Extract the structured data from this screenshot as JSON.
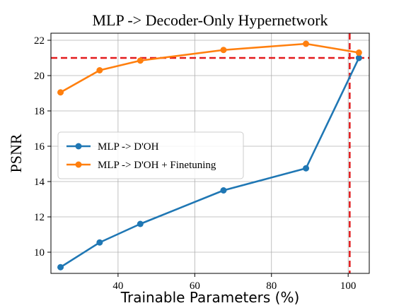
{
  "chart_data": {
    "type": "line",
    "title": "MLP -> Decoder-Only Hypernetwork",
    "xlabel": "Trainable Parameters (%)",
    "ylabel": "PSNR",
    "xlim": [
      22.5,
      105.5
    ],
    "ylim": [
      8.8,
      22.4
    ],
    "xticks": [
      40,
      60,
      80,
      100
    ],
    "yticks": [
      10,
      12,
      14,
      16,
      18,
      20,
      22
    ],
    "grid": true,
    "legend_position": "center-left",
    "series": [
      {
        "name": "MLP -> D'OH",
        "color": "#1f77b4",
        "x": [
          25,
          35.2,
          45.8,
          67.5,
          89,
          102.8
        ],
        "y": [
          9.15,
          10.55,
          11.6,
          13.5,
          14.75,
          21.0
        ]
      },
      {
        "name": "MLP -> D'OH + Finetuning",
        "color": "#ff7f0e",
        "x": [
          25,
          35.2,
          45.8,
          67.5,
          89,
          102.8
        ],
        "y": [
          19.05,
          20.3,
          20.85,
          21.45,
          21.8,
          21.3
        ]
      }
    ],
    "reference_lines": {
      "color": "#e31a1c",
      "horizontal_y": 21.0,
      "vertical_x": 100.4
    }
  }
}
